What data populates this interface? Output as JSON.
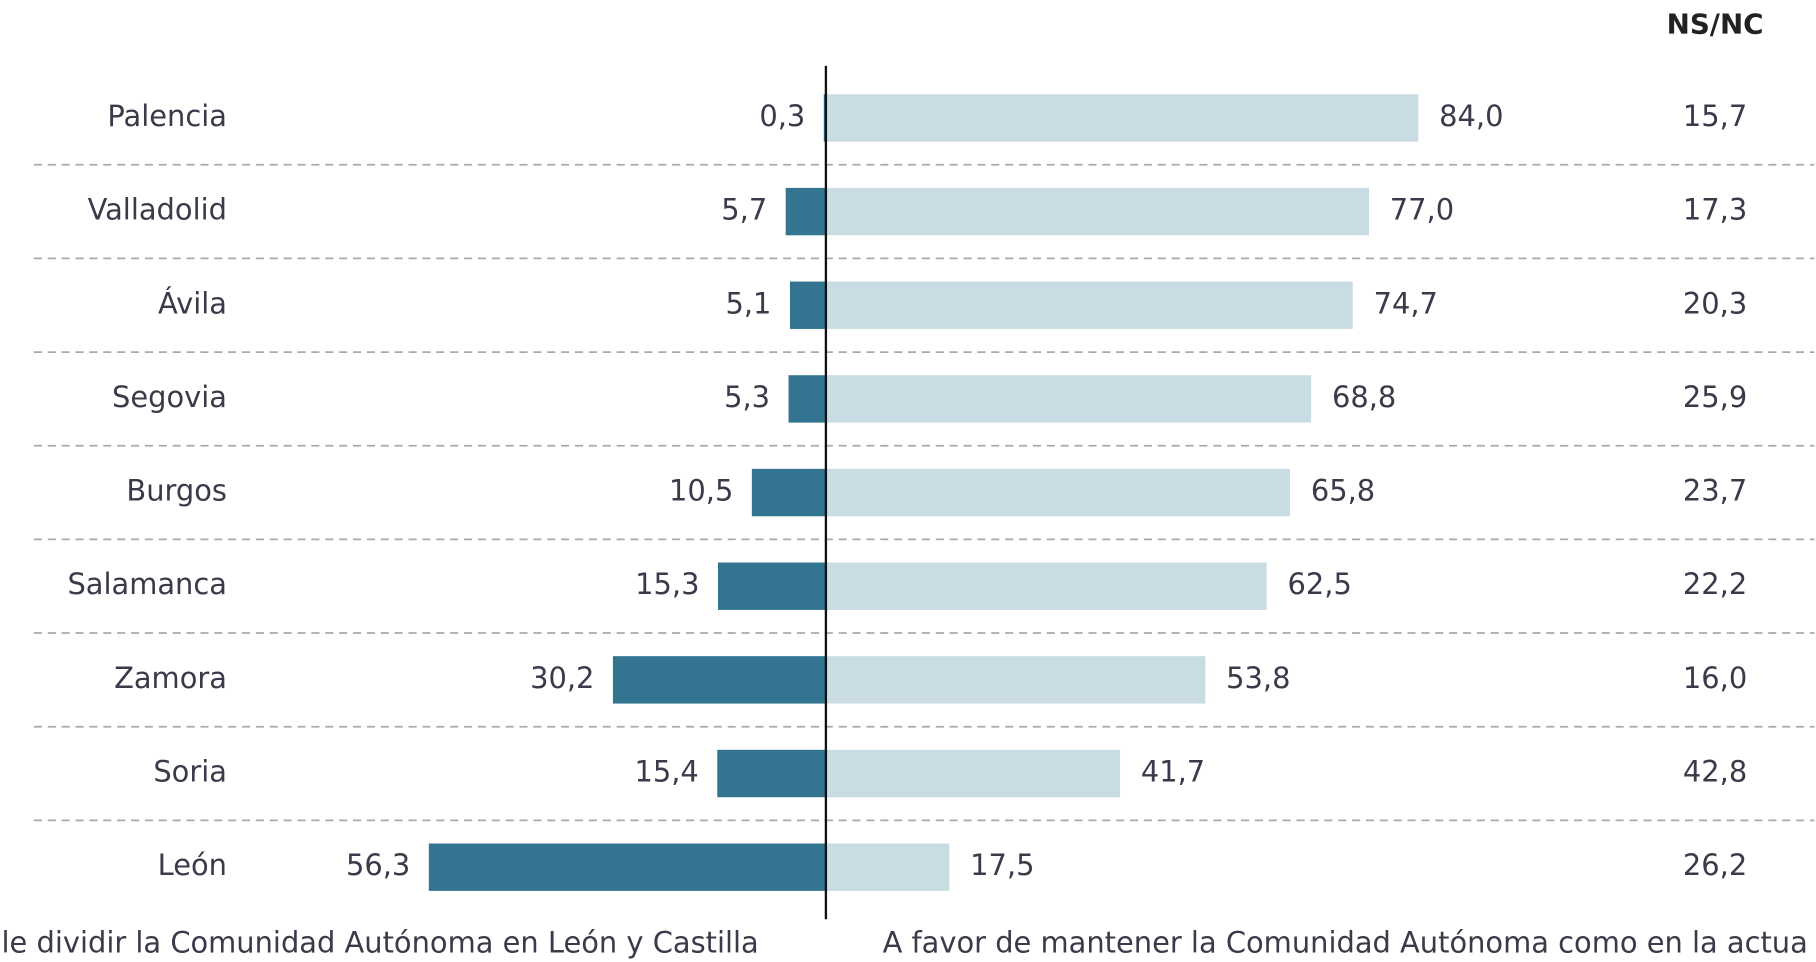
{
  "chart_data": {
    "type": "diverging-bar",
    "categories": [
      "Palencia",
      "Valladolid",
      "Ávila",
      "Segovia",
      "Burgos",
      "Salamanca",
      "Zamora",
      "Soria",
      "León"
    ],
    "series": [
      {
        "name": "le dividir la Comunidad Autónoma en León y Castilla",
        "color": "#337490",
        "values": [
          0.3,
          5.7,
          5.1,
          5.3,
          10.5,
          15.3,
          30.2,
          15.4,
          56.3
        ],
        "value_labels": [
          "0,3",
          "5,7",
          "5,1",
          "5,3",
          "10,5",
          "15,3",
          "30,2",
          "15,4",
          "56,3"
        ]
      },
      {
        "name": "A favor de mantener la Comunidad Autónoma como en la actua",
        "color": "#cadce3",
        "values": [
          84.0,
          77.0,
          74.7,
          68.8,
          65.8,
          62.5,
          53.8,
          41.7,
          17.5
        ],
        "value_labels": [
          "84,0",
          "77,0",
          "74,7",
          "68,8",
          "65,8",
          "62,5",
          "53,8",
          "41,7",
          "17,5"
        ]
      }
    ],
    "extra_column": {
      "title": "NS/NC",
      "values": [
        15.7,
        17.3,
        20.3,
        25.9,
        23.7,
        22.2,
        16.0,
        42.8,
        26.2
      ],
      "value_labels": [
        "15,7",
        "17,3",
        "20,3",
        "25,9",
        "23,7",
        "22,2",
        "16,0",
        "42,8",
        "26,2"
      ]
    }
  }
}
